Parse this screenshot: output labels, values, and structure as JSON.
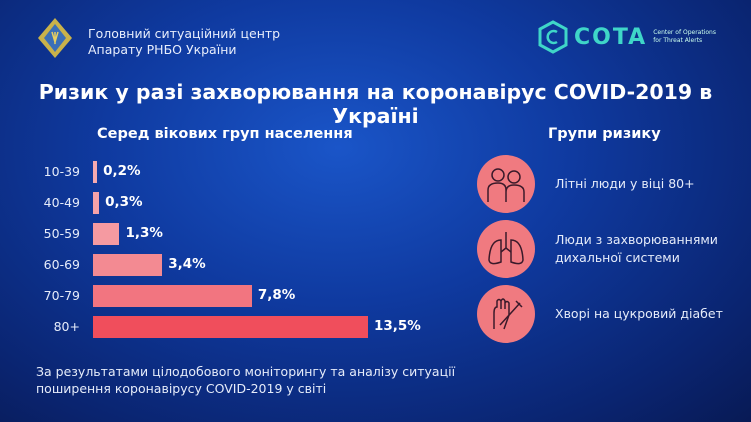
{
  "header": {
    "org_lines": [
      "Головний ситуаційний центр",
      "Апарату РНБО України"
    ],
    "cota_name": "COTA",
    "cota_sub": [
      "Center of Operations",
      "for Threat Alerts"
    ]
  },
  "title": "Ризик у разі захворювання на коронавірус  COVID-2019 в Україні",
  "chart_data": {
    "type": "bar",
    "orientation": "horizontal",
    "title": "Серед вікових груп населення",
    "categories": [
      "10-39",
      "40-49",
      "50-59",
      "60-69",
      "70-79",
      "80+"
    ],
    "values": [
      0.2,
      0.3,
      1.3,
      3.4,
      7.8,
      13.5
    ],
    "labels": [
      "0,2%",
      "0,3%",
      "1,3%",
      "3,4%",
      "7,8%",
      "13,5%"
    ],
    "unit": "%",
    "colors": [
      "#f5a9b0",
      "#f5a2a9",
      "#f59aa1",
      "#f38a92",
      "#f27580",
      "#f04e5c"
    ]
  },
  "footnote": [
    "За результатами цілодобового моніторингу та аналізу ситуації",
    "поширення коронавірусу COVID-2019 у світі"
  ],
  "risk_groups": {
    "title": "Групи ризику",
    "items": [
      {
        "icon": "elderly-people-icon",
        "text": [
          "Літні люди у віці 80+"
        ]
      },
      {
        "icon": "lungs-icon",
        "text": [
          "Люди з захворюваннями",
          "дихальної системи"
        ]
      },
      {
        "icon": "hand-syringe-icon",
        "text": [
          "Хворі на цукровий діабет"
        ]
      }
    ]
  },
  "colors": {
    "accent": "#f07a80",
    "cota": "#3fd6c8"
  }
}
